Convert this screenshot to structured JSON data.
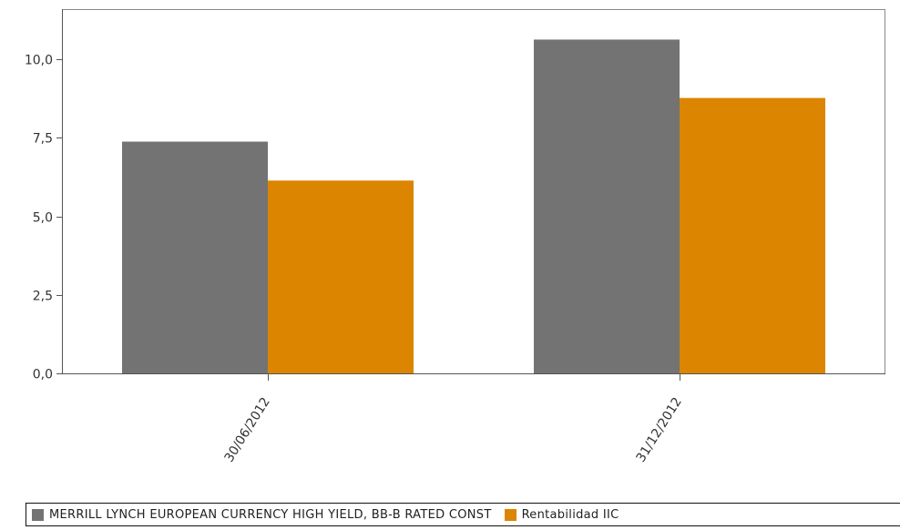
{
  "chart_data": {
    "type": "bar",
    "categories": [
      "30/06/2012",
      "31/12/2012"
    ],
    "series": [
      {
        "name": "MERRILL LYNCH EUROPEAN CURRENCY HIGH YIELD, BB-B RATED CONST",
        "color": "#737373",
        "values": [
          7.38,
          10.63
        ]
      },
      {
        "name": "Rentabilidad IIC",
        "color": "#DB8500",
        "values": [
          6.14,
          8.77
        ]
      }
    ],
    "yticks": [
      "0,0",
      "2,5",
      "5,0",
      "7,5",
      "10,0"
    ],
    "ylim": [
      0,
      11.6
    ],
    "grid": false,
    "legend_position": "bottom"
  }
}
